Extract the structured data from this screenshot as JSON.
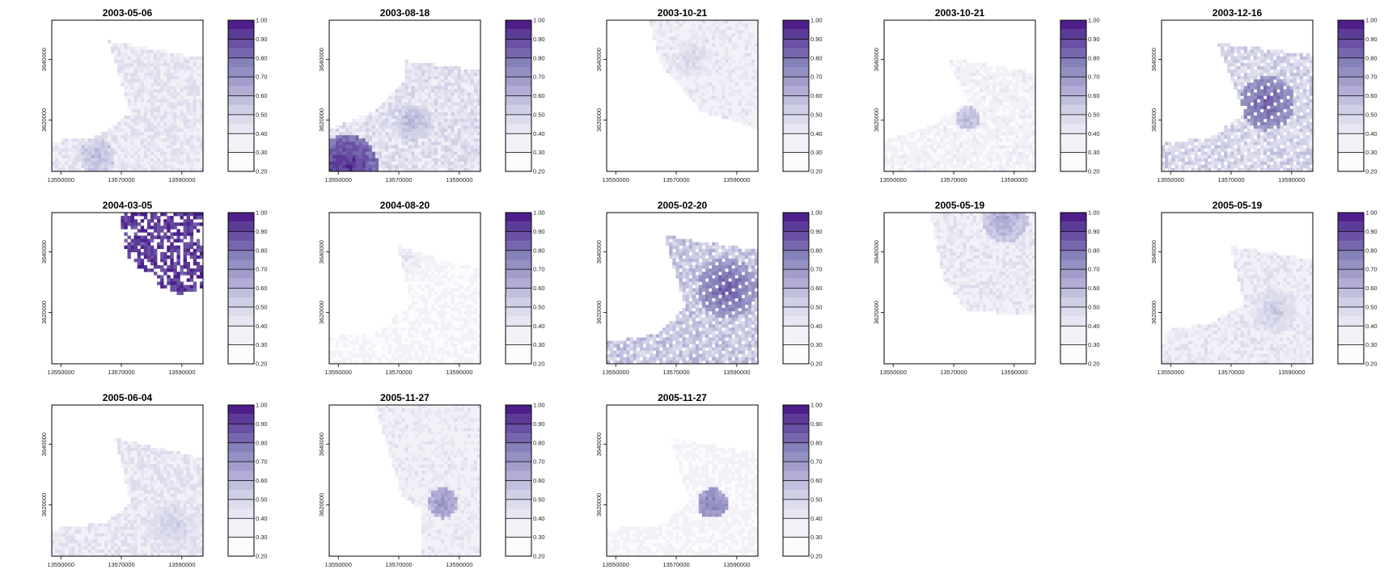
{
  "chart_data": {
    "type": "heatmap",
    "layout": {
      "rows": 3,
      "cols": 5
    },
    "xlim": [
      13547000,
      13597000
    ],
    "ylim": [
      3603000,
      3653000
    ],
    "xticks": [
      13550000,
      13570000,
      13590000
    ],
    "yticks": [
      3620000,
      3640000
    ],
    "colorbar": {
      "breaks": [
        0.2,
        0.3,
        0.4,
        0.45,
        0.5,
        0.55,
        0.6,
        0.65,
        0.7,
        0.75,
        0.8,
        0.85,
        0.9,
        0.95,
        1.0
      ],
      "labels": [
        "0.20",
        "0.30",
        "0.40",
        "0.50",
        "0.60",
        "0.70",
        "0.80",
        "0.90",
        "1.00"
      ],
      "label_values": [
        0.2,
        0.3,
        0.4,
        0.5,
        0.6,
        0.7,
        0.8,
        0.9,
        1.0
      ],
      "colors": [
        "#fcfbfd",
        "#f3f1f7",
        "#e8e6f2",
        "#dcdcec",
        "#cfd0e6",
        "#c0bfde",
        "#b1add4",
        "#a29dcb",
        "#9390c2",
        "#8581b9",
        "#7766ae",
        "#6a51a3",
        "#5c3b97",
        "#4e1f8a"
      ]
    },
    "panels": [
      {
        "title": "2003-05-06",
        "pattern": "p1"
      },
      {
        "title": "2003-08-18",
        "pattern": "p2"
      },
      {
        "title": "2003-10-21",
        "pattern": "p3"
      },
      {
        "title": "2003-10-21",
        "pattern": "p4"
      },
      {
        "title": "2003-12-16",
        "pattern": "p5"
      },
      {
        "title": "2004-03-05",
        "pattern": "p6"
      },
      {
        "title": "2004-08-20",
        "pattern": "p7"
      },
      {
        "title": "2005-02-20",
        "pattern": "p8"
      },
      {
        "title": "2005-05-19",
        "pattern": "p9"
      },
      {
        "title": "2005-05-19",
        "pattern": "p10"
      },
      {
        "title": "2005-06-04",
        "pattern": "p11"
      },
      {
        "title": "2005-11-27",
        "pattern": "p12"
      },
      {
        "title": "2005-11-27",
        "pattern": "p13"
      }
    ]
  }
}
